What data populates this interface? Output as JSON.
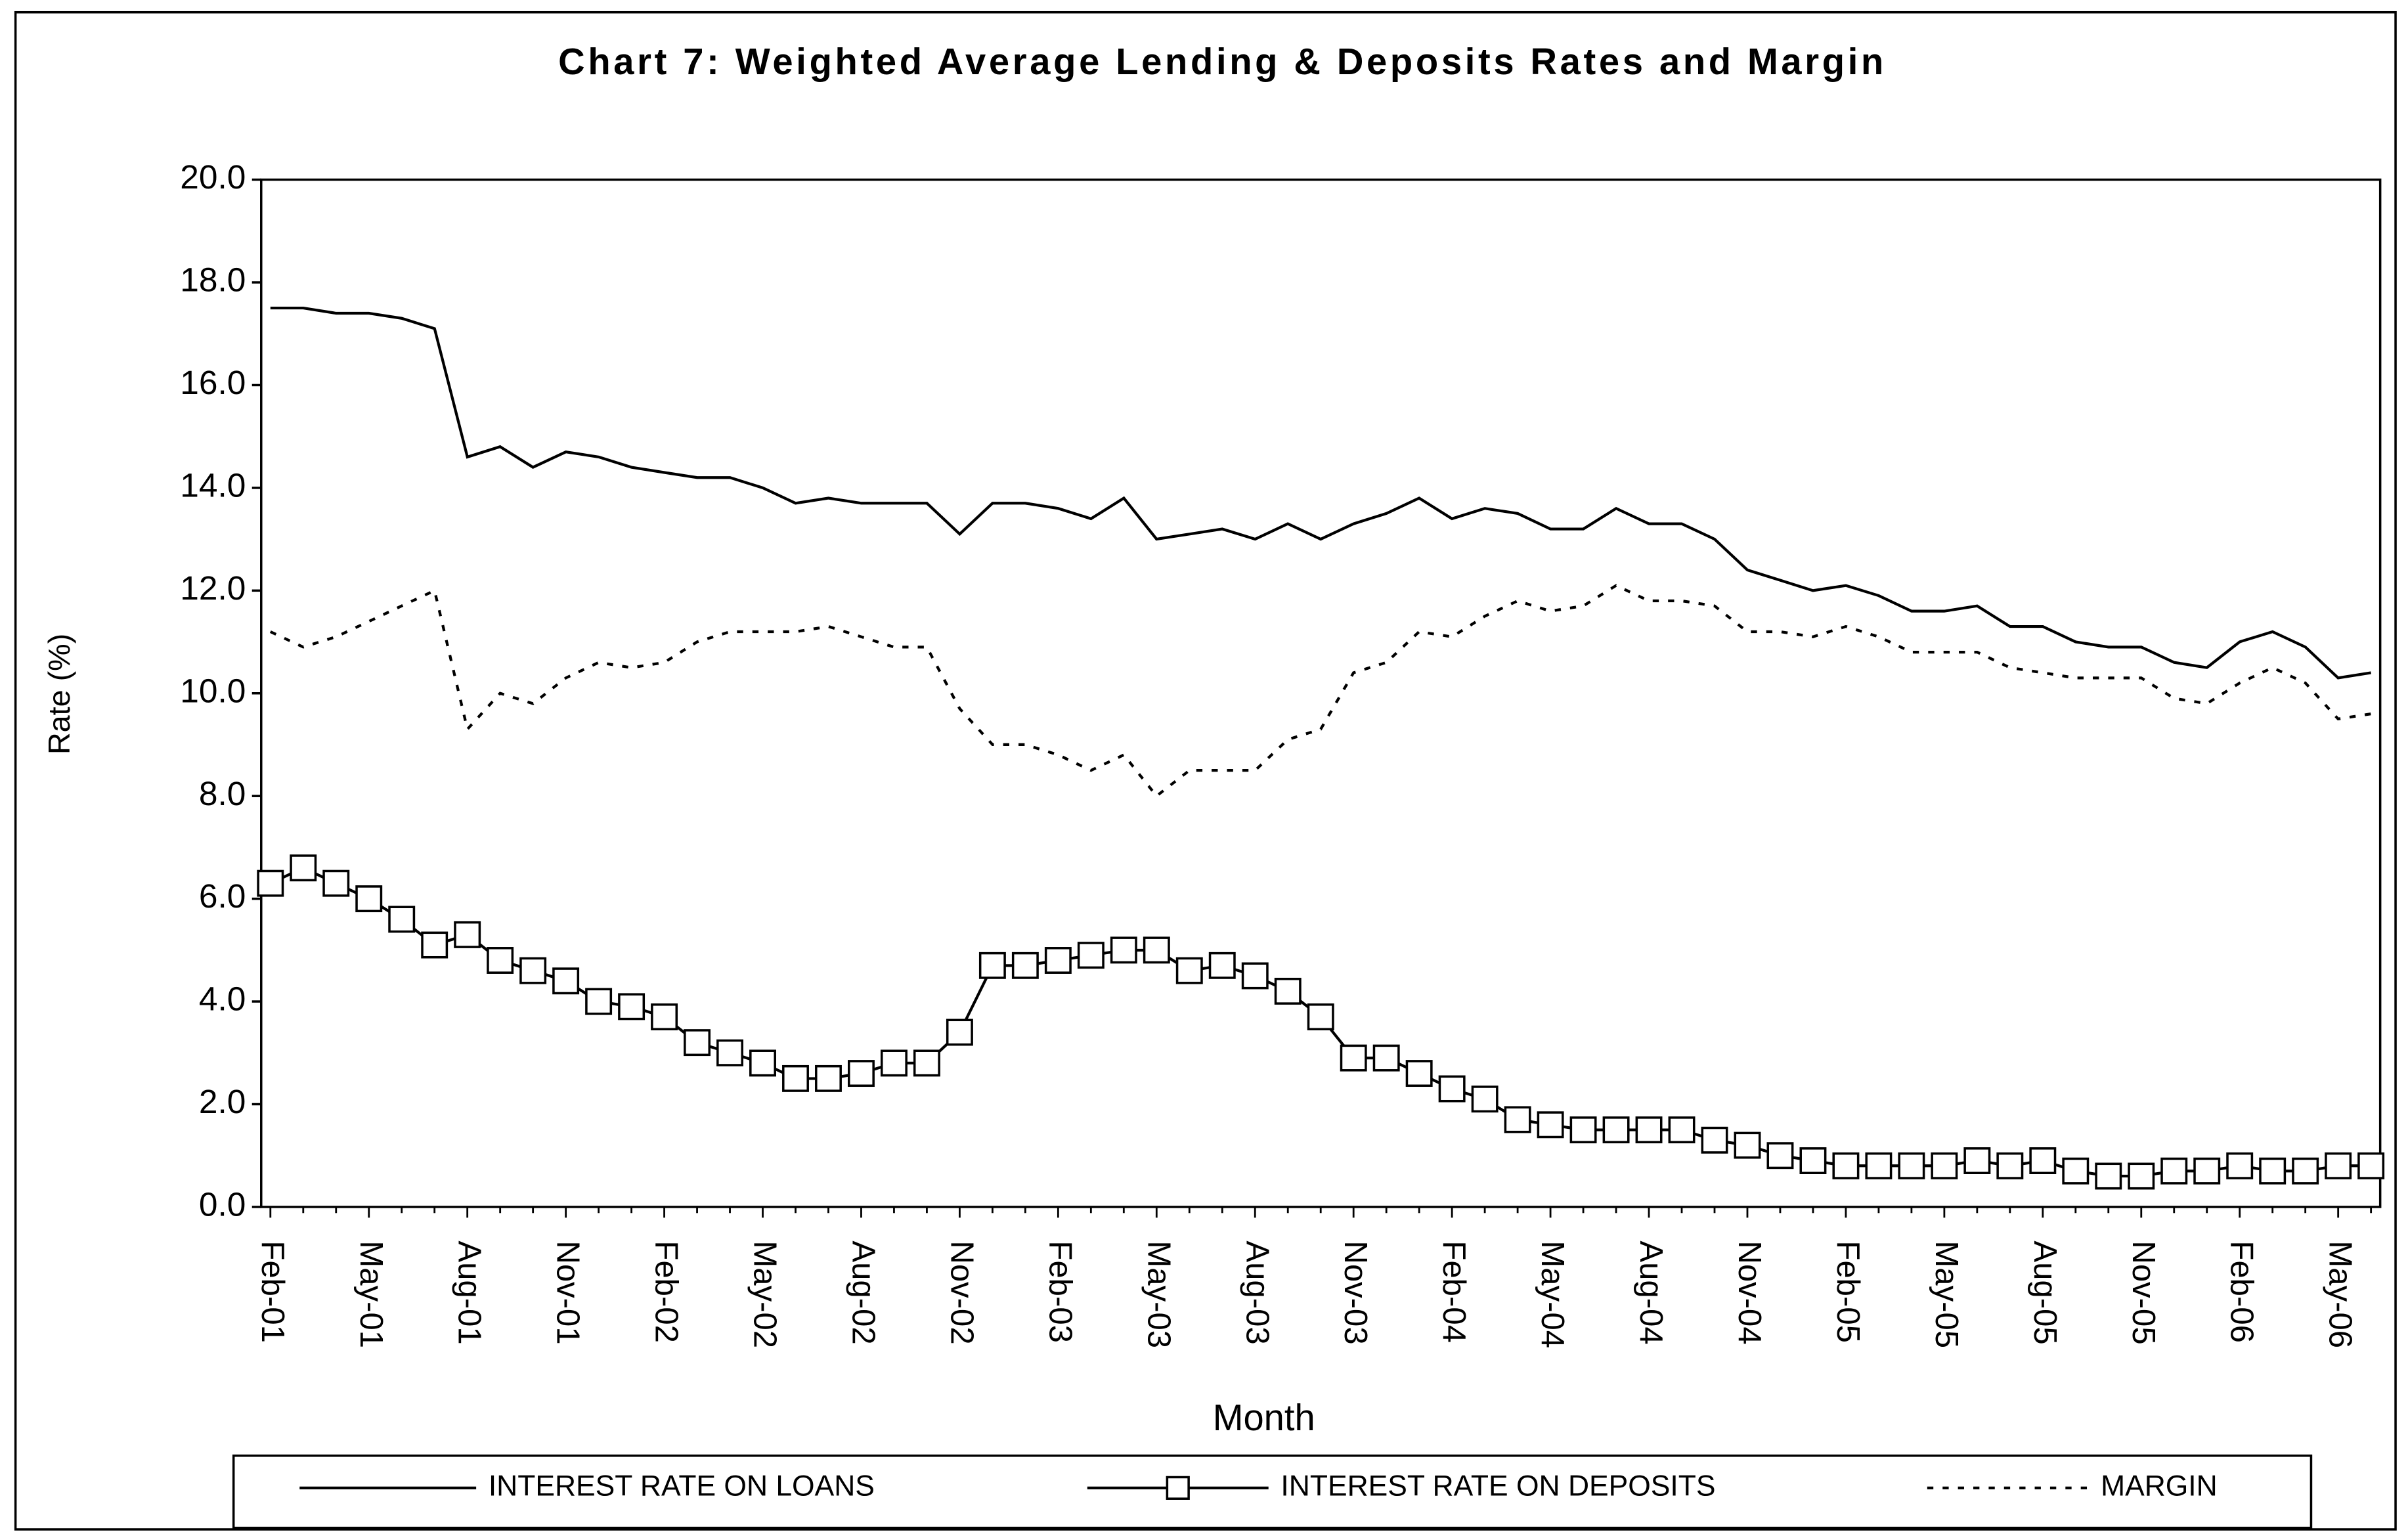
{
  "chart_data": {
    "type": "line",
    "title": "Chart 7: Weighted Average Lending & Deposits Rates and Margin",
    "x_label": "Month",
    "y_label": "Rate (%)",
    "categories": [
      "Feb-01",
      null,
      null,
      "May-01",
      null,
      null,
      "Aug-01",
      null,
      null,
      "Nov-01",
      null,
      null,
      "Feb-02",
      null,
      null,
      "May-02",
      null,
      null,
      "Aug-02",
      null,
      null,
      "Nov-02",
      null,
      null,
      "Feb-03",
      null,
      null,
      "May-03",
      null,
      null,
      "Aug-03",
      null,
      null,
      "Nov-03",
      null,
      null,
      "Feb-04",
      null,
      null,
      "May-04",
      null,
      null,
      "Aug-04",
      null,
      null,
      "Nov-04",
      null,
      null,
      "Feb-05",
      null,
      null,
      "May-05",
      null,
      null,
      "Aug-05",
      null,
      null,
      "Nov-05",
      null,
      null,
      "Feb-06",
      null,
      null,
      "May-06",
      null
    ],
    "series": [
      {
        "name": "INTEREST RATE ON LOANS",
        "color": "#000000",
        "style": "solid",
        "marker": "none",
        "values": [
          17.5,
          17.5,
          17.4,
          17.4,
          17.3,
          17.1,
          14.6,
          14.8,
          14.4,
          14.7,
          14.6,
          14.4,
          14.3,
          14.2,
          14.2,
          14.0,
          13.7,
          13.8,
          13.7,
          13.7,
          13.7,
          13.1,
          13.7,
          13.7,
          13.6,
          13.4,
          13.8,
          13.0,
          13.1,
          13.2,
          13.0,
          13.3,
          13.0,
          13.3,
          13.5,
          13.8,
          13.4,
          13.6,
          13.5,
          13.2,
          13.2,
          13.6,
          13.3,
          13.3,
          13.0,
          12.4,
          12.2,
          12.0,
          12.1,
          11.9,
          11.6,
          11.6,
          11.7,
          11.3,
          11.3,
          11.0,
          10.9,
          10.9,
          10.6,
          10.5,
          11.0,
          11.2,
          10.9,
          10.3,
          10.4
        ]
      },
      {
        "name": "INTEREST RATE ON DEPOSITS",
        "color": "#000000",
        "style": "solid",
        "marker": "square",
        "values": [
          6.3,
          6.6,
          6.3,
          6.0,
          5.6,
          5.1,
          5.3,
          4.8,
          4.6,
          4.4,
          4.0,
          3.9,
          3.7,
          3.2,
          3.0,
          2.8,
          2.5,
          2.5,
          2.6,
          2.8,
          2.8,
          3.4,
          4.7,
          4.7,
          4.8,
          4.9,
          5.0,
          5.0,
          4.6,
          4.7,
          4.5,
          4.2,
          3.7,
          2.9,
          2.9,
          2.6,
          2.3,
          2.1,
          1.7,
          1.6,
          1.5,
          1.5,
          1.5,
          1.5,
          1.3,
          1.2,
          1.0,
          0.9,
          0.8,
          0.8,
          0.8,
          0.8,
          0.9,
          0.8,
          0.9,
          0.7,
          0.6,
          0.6,
          0.7,
          0.7,
          0.8,
          0.7,
          0.7,
          0.8,
          0.8
        ]
      },
      {
        "name": "MARGIN",
        "color": "#000000",
        "style": "dashed",
        "marker": "none",
        "values": [
          11.2,
          10.9,
          11.1,
          11.4,
          11.7,
          12.0,
          9.3,
          10.0,
          9.8,
          10.3,
          10.6,
          10.5,
          10.6,
          11.0,
          11.2,
          11.2,
          11.2,
          11.3,
          11.1,
          10.9,
          10.9,
          9.7,
          9.0,
          9.0,
          8.8,
          8.5,
          8.8,
          8.0,
          8.5,
          8.5,
          8.5,
          9.1,
          9.3,
          10.4,
          10.6,
          11.2,
          11.1,
          11.5,
          11.8,
          11.6,
          11.7,
          12.1,
          11.8,
          11.8,
          11.7,
          11.2,
          11.2,
          11.1,
          11.3,
          11.1,
          10.8,
          10.8,
          10.8,
          10.5,
          10.4,
          10.3,
          10.3,
          10.3,
          9.9,
          9.8,
          10.2,
          10.5,
          10.2,
          9.5,
          9.6
        ]
      }
    ],
    "ylim": [
      0,
      20
    ],
    "yticks": [
      {
        "value": 0,
        "label": "0.0"
      },
      {
        "value": 2,
        "label": "2.0"
      },
      {
        "value": 4,
        "label": "4.0"
      },
      {
        "value": 6,
        "label": "6.0"
      },
      {
        "value": 8,
        "label": "8.0"
      },
      {
        "value": 10,
        "label": "10.0"
      },
      {
        "value": 12,
        "label": "12.0"
      },
      {
        "value": 14,
        "label": "14.0"
      },
      {
        "value": 16,
        "label": "16.0"
      },
      {
        "value": 18,
        "label": "18.0"
      },
      {
        "value": 20,
        "label": "20.0"
      }
    ],
    "grid": false,
    "legend": "bottom"
  }
}
